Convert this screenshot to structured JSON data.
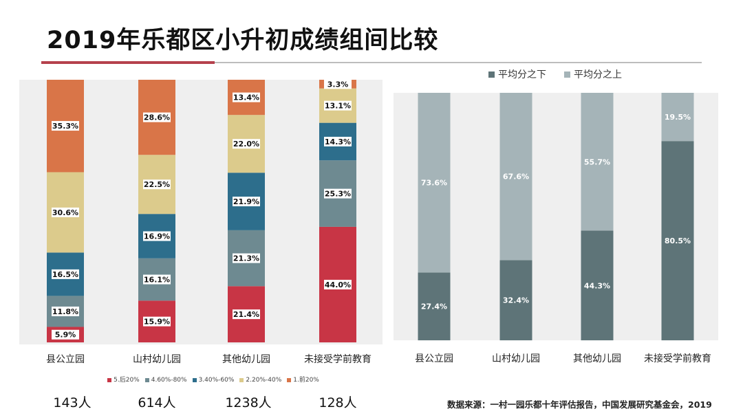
{
  "title": "2019年乐都区小升初成绩组间比较",
  "source": "数据来源：一村一园乐都十年评估报告，中国发展研究基金会，2019",
  "counts": [
    "143人",
    "614人",
    "1238人",
    "128人"
  ],
  "colors": {
    "accent_rule": "#b5414c",
    "left_series": [
      "#c83545",
      "#6e8a91",
      "#2d6e8c",
      "#dccb8c",
      "#d97548"
    ],
    "right_series": [
      "#5e7478",
      "#a5b4b8"
    ]
  },
  "chart_data": [
    {
      "type": "bar",
      "stacked": true,
      "categories": [
        "县公立园",
        "山村幼儿园",
        "其他幼儿园",
        "未接受学前教育"
      ],
      "series": [
        {
          "name": "5.后20%",
          "values": [
            5.9,
            15.9,
            21.4,
            44.0
          ],
          "labels": [
            "5.9%",
            "15.9%",
            "21.4%",
            "44.0%"
          ]
        },
        {
          "name": "4.60%-80%",
          "values": [
            11.8,
            16.1,
            21.3,
            25.3
          ],
          "labels": [
            "11.8%",
            "16.1%",
            "21.3%",
            "25.3%"
          ]
        },
        {
          "name": "3.40%-60%",
          "values": [
            16.5,
            16.9,
            21.9,
            14.3
          ],
          "labels": [
            "16.5%",
            "16.9%",
            "21.9%",
            "14.3%"
          ]
        },
        {
          "name": "2.20%-40%",
          "values": [
            30.6,
            22.5,
            22.0,
            13.1
          ],
          "labels": [
            "30.6%",
            "22.5%",
            "22.0%",
            "13.1%"
          ]
        },
        {
          "name": "1.前20%",
          "values": [
            35.3,
            28.6,
            13.4,
            3.3
          ],
          "labels": [
            "35.3%",
            "28.6%",
            "13.4%",
            "3.3%"
          ]
        }
      ],
      "ylim": [
        0,
        100
      ],
      "legend": "bottom"
    },
    {
      "type": "bar",
      "stacked": true,
      "categories": [
        "县公立园",
        "山村幼儿园",
        "其他幼儿园",
        "未接受学前教育"
      ],
      "series": [
        {
          "name": "平均分之下",
          "values": [
            27.4,
            32.4,
            44.3,
            80.5
          ],
          "labels": [
            "27.4%",
            "32.4%",
            "44.3%",
            "80.5%"
          ]
        },
        {
          "name": "平均分之上",
          "values": [
            73.6,
            67.6,
            55.7,
            19.5
          ],
          "labels": [
            "73.6%",
            "67.6%",
            "55.7%",
            "19.5%"
          ]
        }
      ],
      "ylim": [
        0,
        100
      ],
      "legend": "top-left"
    }
  ]
}
